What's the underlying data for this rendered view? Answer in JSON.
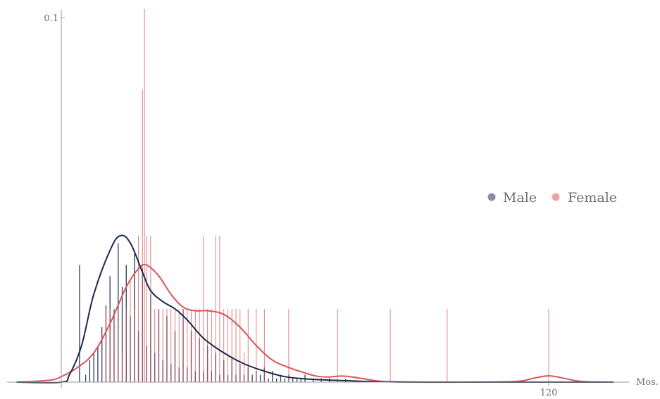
{
  "colors": {
    "male": "#1b2a4a",
    "male_light": "#8a8fa6",
    "female": "#d9545a",
    "female_light": "#e9a3a7",
    "axis": "#9a9a9a"
  },
  "chart_data": {
    "type": "line",
    "title": "",
    "xlabel": "Mos.",
    "ylabel": "",
    "xlim": [
      -11,
      136
    ],
    "ylim": [
      0,
      0.102
    ],
    "x_ticks": [
      {
        "value": 120,
        "label": "120"
      }
    ],
    "y_ticks": [
      {
        "value": 0.1,
        "label": "0.1"
      }
    ],
    "legend": {
      "position": "right",
      "items": [
        {
          "name": "Male",
          "color_key": "male_light"
        },
        {
          "name": "Female",
          "color_key": "female_light"
        }
      ]
    },
    "series": [
      {
        "name": "Male",
        "kind": "density",
        "curve": {
          "x": [
            -11,
            0,
            2,
            5,
            8,
            12,
            14.5,
            17,
            20,
            22,
            25,
            28,
            31,
            35,
            40,
            45,
            50,
            55,
            60,
            65,
            70,
            75,
            80,
            90,
            100,
            110,
            120,
            130,
            136
          ],
          "y": [
            0,
            0,
            0.002,
            0.01,
            0.024,
            0.036,
            0.04,
            0.038,
            0.03,
            0.025,
            0.022,
            0.02,
            0.017,
            0.012,
            0.008,
            0.005,
            0.003,
            0.0015,
            0.0009,
            0.0006,
            0.0004,
            0.0002,
            0.0001,
            0,
            0,
            0,
            0,
            0,
            0
          ]
        },
        "spikes": {
          "x": [
            4.5,
            6,
            7,
            8,
            9,
            10,
            11,
            12,
            13,
            14,
            15,
            16,
            17,
            18,
            19,
            20,
            21,
            22,
            23,
            24,
            25,
            26,
            27,
            28,
            29,
            30,
            31,
            32,
            33,
            34,
            35,
            36,
            37,
            38,
            39,
            40,
            41,
            42,
            43,
            44,
            45,
            46,
            47,
            48,
            49,
            50,
            51,
            52,
            53,
            54,
            55,
            56,
            57,
            58,
            59,
            60,
            62,
            64,
            66,
            68,
            70,
            72,
            74,
            76,
            78,
            80,
            84,
            88
          ],
          "y": [
            0.032,
            0.002,
            0.006,
            0.008,
            0.01,
            0.015,
            0.021,
            0.029,
            0.02,
            0.038,
            0.026,
            0.032,
            0.018,
            0.035,
            0.014,
            0.031,
            0.01,
            0.024,
            0.008,
            0.02,
            0.006,
            0.018,
            0.005,
            0.014,
            0.004,
            0.02,
            0.004,
            0.014,
            0.003,
            0.012,
            0.003,
            0.01,
            0.003,
            0.008,
            0.002,
            0.006,
            0.002,
            0.007,
            0.002,
            0.005,
            0.002,
            0.004,
            0.002,
            0.003,
            0.002,
            0.004,
            0.001,
            0.003,
            0.001,
            0.002,
            0.001,
            0.002,
            0.001,
            0.001,
            0.001,
            0.002,
            0.001,
            0.001,
            0.001,
            0.0005,
            0.0008,
            0.0005,
            0.0004,
            0.0003,
            0.0003,
            0.0003,
            0.0002,
            0.0002
          ]
        }
      },
      {
        "name": "Female",
        "kind": "density",
        "curve": {
          "x": [
            -11,
            -3,
            0,
            4,
            8,
            12,
            16,
            19,
            21,
            24,
            27,
            30,
            33,
            36,
            40,
            44,
            48,
            52,
            56,
            60,
            63,
            66,
            68,
            70,
            74,
            78,
            84,
            100,
            112,
            116,
            120,
            124,
            128,
            136
          ],
          "y": [
            0,
            0.0005,
            0.0015,
            0.004,
            0.008,
            0.016,
            0.026,
            0.031,
            0.032,
            0.029,
            0.024,
            0.0205,
            0.0195,
            0.0195,
            0.0185,
            0.015,
            0.01,
            0.006,
            0.004,
            0.0025,
            0.0016,
            0.0014,
            0.0016,
            0.0016,
            0.001,
            0.0003,
            0,
            0,
            0.0002,
            0.001,
            0.0017,
            0.001,
            0.0002,
            0
          ]
        },
        "spikes": {
          "x": [
            11,
            12,
            13,
            14,
            15,
            16,
            17,
            18,
            19,
            20,
            20.5,
            21,
            22,
            23,
            24,
            25,
            26,
            27,
            28,
            29,
            30,
            31,
            32,
            33,
            34,
            35,
            36,
            37,
            38,
            39,
            40,
            41,
            42,
            43,
            44,
            45,
            46,
            48,
            50,
            56,
            68,
            81,
            95,
            120
          ],
          "y": [
            0.02,
            0.02,
            0.02,
            0.02,
            0.008,
            0.02,
            0.028,
            0.02,
            0.04,
            0.08,
            0.102,
            0.04,
            0.04,
            0.02,
            0.02,
            0.02,
            0.02,
            0.02,
            0.02,
            0.02,
            0.02,
            0.02,
            0.02,
            0.02,
            0.02,
            0.04,
            0.02,
            0.02,
            0.04,
            0.04,
            0.02,
            0.02,
            0.02,
            0.02,
            0.02,
            0.008,
            0.02,
            0.02,
            0.02,
            0.02,
            0.02,
            0.02,
            0.02,
            0.02
          ]
        }
      }
    ]
  }
}
